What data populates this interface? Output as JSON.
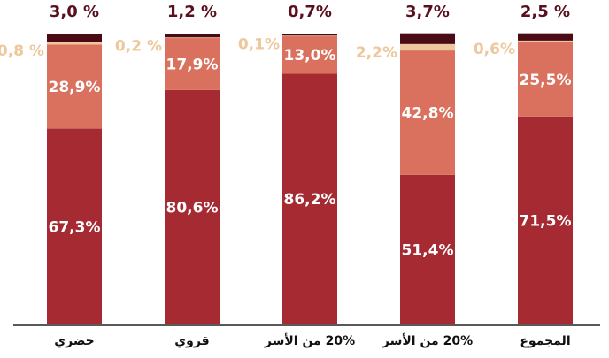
{
  "chart_data": {
    "type": "bar",
    "stacked": true,
    "categories": [
      "حضري",
      "قروي",
      "20% من الأسر",
      "20% من الأسر",
      "المجموع"
    ],
    "series": [
      {
        "values": [
          67.3,
          80.6,
          86.2,
          51.4,
          71.5
        ],
        "labels": [
          "67,3%",
          "80,6%",
          "86,2%",
          "51,4%",
          "71,5%"
        ],
        "color": "#a52a32"
      },
      {
        "values": [
          28.9,
          17.9,
          13.0,
          42.8,
          25.5
        ],
        "labels": [
          "28,9%",
          "17,9%",
          "13,0%",
          "42,8%",
          "25,5%"
        ],
        "color": "#d9715e"
      },
      {
        "values": [
          0.8,
          0.2,
          0.1,
          2.2,
          0.6
        ],
        "labels": [
          "0,8 %",
          "0,2 %",
          "0,1%",
          "2,2%",
          "0,6%"
        ],
        "color": "#eec89c"
      },
      {
        "values": [
          3.0,
          1.2,
          0.7,
          3.7,
          2.5
        ],
        "labels": [
          "3,0 %",
          "1,2 %",
          "0,7%",
          "3,7%",
          "2,5 %"
        ],
        "color": "#4a0a16"
      }
    ],
    "ylim": [
      0,
      100
    ],
    "grid": false,
    "legend": "none"
  }
}
